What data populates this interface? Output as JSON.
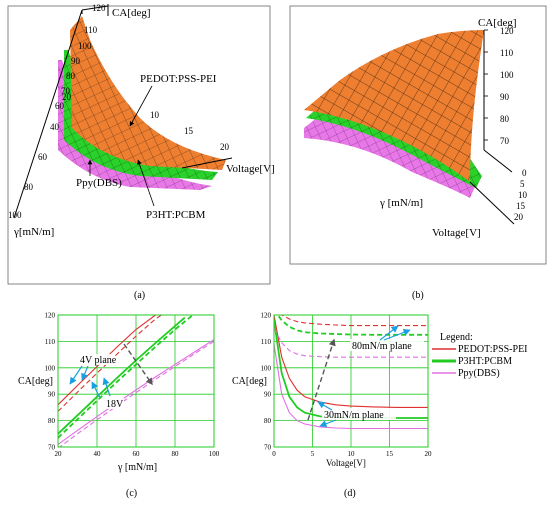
{
  "panels": {
    "a": {
      "caption": "(a)"
    },
    "b": {
      "caption": "(b)"
    },
    "c": {
      "caption": "(c)"
    },
    "d": {
      "caption": "(d)"
    }
  },
  "panel_a": {
    "z_axis_label": "CA[deg]",
    "z_ticks": [
      "120",
      "110",
      "100",
      "90",
      "80",
      "70",
      "60"
    ],
    "y_axis_label": "γ[mN/m]",
    "y_ticks": [
      "20",
      "40",
      "60",
      "80",
      "100"
    ],
    "x_axis_label": "Voltage[V]",
    "x_ticks": [
      "10",
      "15",
      "20"
    ],
    "surface_labels": [
      "PEDOT:PSS-PEI",
      "Ppy(DBS)",
      "P3HT:PCBM"
    ],
    "colors": {
      "pedot": "#e9782c",
      "p3ht": "#22cc22",
      "ppy": "#e26ee6"
    }
  },
  "panel_b": {
    "z_axis_label": "CA[deg]",
    "z_ticks": [
      "120",
      "110",
      "100",
      "90",
      "80",
      "70"
    ],
    "y_axis_label": "γ [mN/m]",
    "x_axis_label": "Voltage[V]",
    "x_ticks": [
      "0",
      "5",
      "10",
      "15",
      "20"
    ]
  },
  "legend": {
    "title": "Legend:",
    "items": [
      {
        "label": "PEDOT:PSS-PEI",
        "color": "#e03030"
      },
      {
        "label": "P3HT:PCBM",
        "color": "#22cc22"
      },
      {
        "label": "Ppy(DBS)",
        "color": "#e070e0"
      }
    ]
  },
  "chart_data": [
    {
      "panel": "c",
      "type": "line",
      "xlabel": "γ [mN/m]",
      "ylabel": "CA[deg]",
      "xlim": [
        20,
        100
      ],
      "ylim": [
        70,
        120
      ],
      "x_ticks": [
        20,
        40,
        60,
        80,
        100
      ],
      "y_ticks": [
        70,
        80,
        90,
        100,
        110,
        120
      ],
      "grid": true,
      "annotations": [
        "4V plane",
        "18V"
      ],
      "series": [
        {
          "color": "#e03030",
          "style": "solid",
          "x": [
            20,
            30,
            40,
            50,
            60,
            70
          ],
          "y": [
            86,
            93.3,
            100.5,
            107.7,
            114.5,
            120
          ]
        },
        {
          "color": "#e03030",
          "style": "dashed",
          "x": [
            20,
            30,
            40,
            50,
            60,
            70,
            75
          ],
          "y": [
            83.5,
            90.8,
            98,
            105,
            112,
            118.5,
            121
          ]
        },
        {
          "color": "#22cc22",
          "style": "solid",
          "x": [
            20,
            30,
            40,
            50,
            60,
            70,
            80,
            85
          ],
          "y": [
            75,
            82,
            89,
            96,
            102.8,
            109.4,
            115.8,
            119
          ]
        },
        {
          "color": "#22cc22",
          "style": "dashed",
          "x": [
            20,
            30,
            40,
            50,
            60,
            70,
            80,
            90
          ],
          "y": [
            73.5,
            80.5,
            87.5,
            94.5,
            101.3,
            108,
            114.5,
            120.5
          ]
        },
        {
          "color": "#e070e0",
          "style": "solid",
          "x": [
            20,
            30,
            40,
            50,
            60,
            70,
            80,
            90,
            100
          ],
          "y": [
            71,
            76.3,
            81.5,
            86.6,
            91.6,
            96.5,
            101.3,
            106,
            110.7
          ]
        },
        {
          "color": "#e070e0",
          "style": "dashed",
          "x": [
            20,
            30,
            40,
            50,
            60,
            70,
            80,
            90,
            100
          ],
          "y": [
            69.5,
            75,
            80.3,
            85.5,
            90.6,
            95.6,
            100.5,
            105.3,
            110
          ]
        }
      ]
    },
    {
      "panel": "d",
      "type": "line",
      "xlabel": "Voltage[V]",
      "ylabel": "CA[deg]",
      "xlim": [
        0,
        20
      ],
      "ylim": [
        70,
        120
      ],
      "x_ticks": [
        0,
        5,
        10,
        15,
        20
      ],
      "y_ticks": [
        70,
        80,
        90,
        100,
        110,
        120
      ],
      "grid": true,
      "annotations": [
        "80mN/m plane",
        "30mN/m plane"
      ],
      "series": [
        {
          "color": "#e03030",
          "style": "solid",
          "x": [
            0,
            1,
            2,
            3,
            4,
            6,
            8,
            10,
            13,
            16,
            20
          ],
          "y": [
            120,
            104,
            96,
            91.5,
            89,
            87,
            86,
            85.5,
            85.2,
            85,
            85
          ]
        },
        {
          "color": "#22cc22",
          "style": "solid",
          "x": [
            0,
            1,
            2,
            3,
            4,
            6,
            8,
            10,
            13,
            16,
            20
          ],
          "y": [
            118,
            98,
            89,
            85,
            83,
            81.6,
            81.2,
            81,
            81,
            81,
            81
          ]
        },
        {
          "color": "#e070e0",
          "style": "solid",
          "x": [
            0,
            1,
            2,
            3,
            4,
            6,
            8,
            10,
            13,
            16,
            20
          ],
          "y": [
            109,
            90,
            83,
            80,
            78.7,
            77.6,
            77.2,
            77,
            77,
            77,
            77
          ]
        },
        {
          "color": "#e03030",
          "style": "dashed",
          "x": [
            0,
            1,
            2,
            3,
            4,
            6,
            8,
            10,
            13,
            16,
            20
          ],
          "y": [
            123,
            120,
            118.5,
            117.5,
            117,
            116.5,
            116.2,
            116,
            116,
            116,
            116
          ]
        },
        {
          "color": "#22cc22",
          "style": "dashed",
          "x": [
            0,
            1,
            2,
            3,
            4,
            6,
            8,
            10,
            13,
            16,
            20
          ],
          "y": [
            122,
            118,
            115.5,
            114.2,
            113.5,
            113,
            112.8,
            112.6,
            112.5,
            112.5,
            112.5
          ]
        },
        {
          "color": "#e070e0",
          "style": "dashed",
          "x": [
            0,
            1,
            2,
            3,
            4,
            6,
            8,
            10,
            13,
            16,
            20
          ],
          "y": [
            115,
            109.5,
            106.5,
            105.2,
            104.6,
            104.2,
            104,
            104,
            104,
            104,
            104
          ]
        }
      ]
    }
  ]
}
